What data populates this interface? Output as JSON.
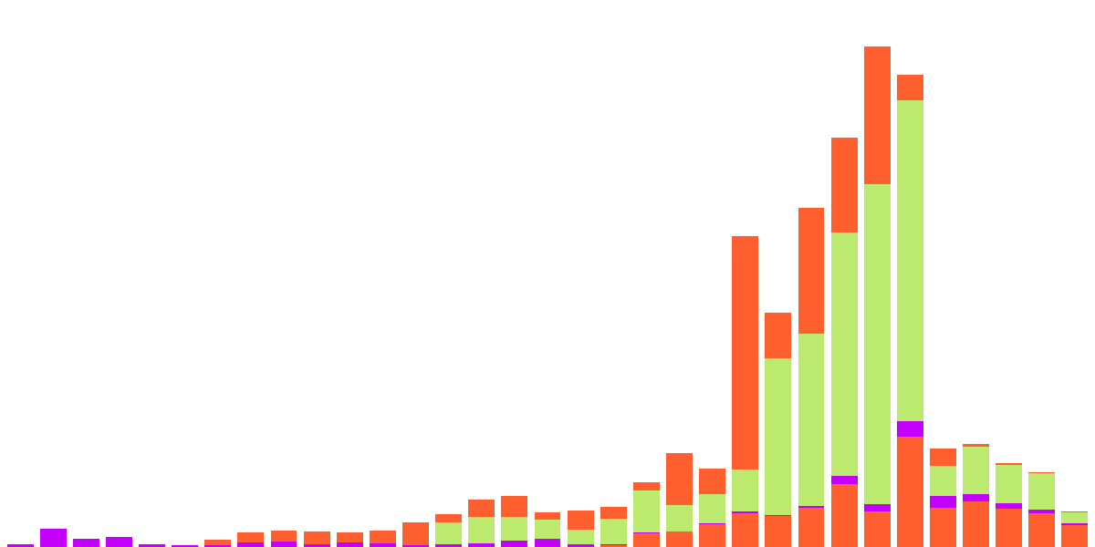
{
  "chart_data": {
    "type": "bar",
    "stacked": true,
    "tick_labels": false,
    "grid": false,
    "categories": [
      null,
      null,
      null,
      null,
      null,
      null,
      null,
      null,
      null,
      null,
      null,
      null,
      null,
      null,
      null,
      null,
      null,
      null,
      null,
      null,
      null,
      null,
      null,
      null,
      null,
      null,
      null,
      null,
      null,
      null,
      null,
      null,
      null
    ],
    "ylim": [
      0,
      600
    ],
    "series": [
      {
        "color": "#ff5f2e",
        "values": [
          0,
          0,
          0,
          0,
          0,
          0,
          0,
          0,
          0,
          0,
          0,
          0,
          0,
          0,
          0,
          0,
          0,
          0,
          2,
          15,
          17,
          25,
          37,
          34,
          43,
          69,
          39,
          121,
          43,
          50,
          42,
          37,
          24
        ]
      },
      {
        "color": "#c200fb",
        "values": [
          3,
          20,
          9,
          11,
          3,
          2,
          2,
          5,
          6,
          3,
          5,
          4,
          2,
          3,
          4,
          7,
          9,
          3,
          1,
          1,
          0,
          1,
          2,
          1,
          2,
          9,
          8,
          17,
          13,
          8,
          6,
          4,
          2
        ]
      },
      {
        "color": "#bcea6e",
        "values": [
          0,
          0,
          0,
          0,
          0,
          0,
          0,
          0,
          0,
          0,
          0,
          0,
          0,
          24,
          29,
          26,
          21,
          16,
          28,
          46,
          29,
          32,
          46,
          172,
          189,
          267,
          351,
          352,
          33,
          52,
          42,
          40,
          12
        ]
      },
      {
        "color": "#ff5f2e",
        "values": [
          0,
          0,
          0,
          0,
          0,
          0,
          6,
          11,
          12,
          14,
          11,
          14,
          25,
          9,
          19,
          23,
          8,
          21,
          13,
          9,
          57,
          28,
          256,
          50,
          138,
          104,
          151,
          28,
          19,
          3,
          2,
          1,
          1
        ]
      }
    ]
  }
}
